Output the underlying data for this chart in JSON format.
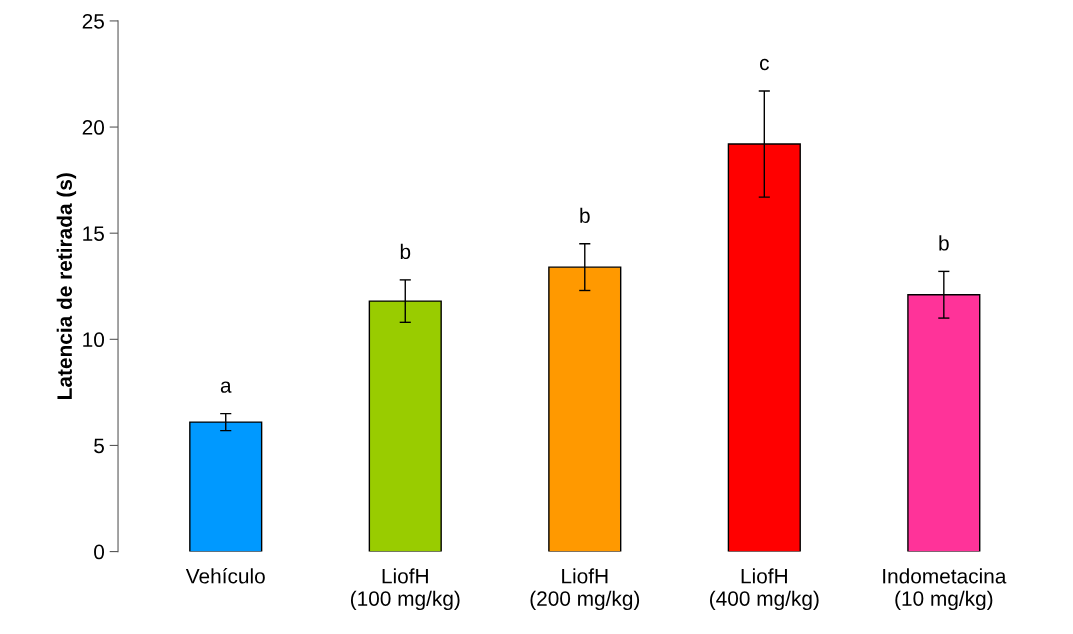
{
  "chart_data": {
    "type": "bar",
    "ylabel": "Latencia de retirada (s)",
    "categories": [
      "Vehículo",
      "LiofH\n(100 mg/kg)",
      "LiofH\n(200 mg/kg)",
      "LiofH\n(400 mg/kg)",
      "Indometacina\n(10 mg/kg)"
    ],
    "values": [
      6.1,
      11.8,
      13.4,
      19.2,
      12.1
    ],
    "errors": [
      0.4,
      1.0,
      1.1,
      2.5,
      1.1
    ],
    "colors": [
      "#0099ff",
      "#99cc00",
      "#ff9900",
      "#ff0000",
      "#ff3399"
    ],
    "ylim": [
      0,
      25
    ],
    "yticks": [
      0,
      5,
      10,
      15,
      20,
      25
    ],
    "grid": false,
    "annotations": [
      "a",
      "b",
      "b",
      "c",
      "b"
    ]
  }
}
